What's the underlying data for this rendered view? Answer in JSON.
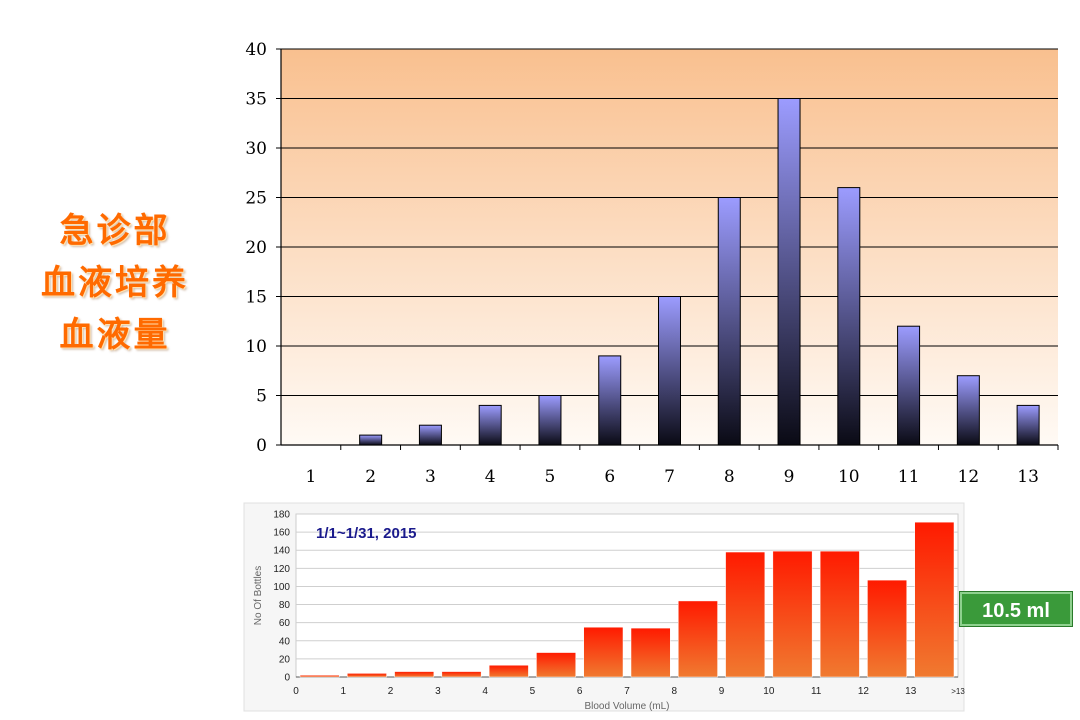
{
  "side_title": [
    "急诊部",
    "血液培养",
    "血液量"
  ],
  "badge": "10.5 ml",
  "colors": {
    "title": "#ff6a00",
    "chart1_bg_top": "#f9c08f",
    "chart1_bg_bottom": "#fffaf5",
    "chart1_bar_top": "#9c9cff",
    "chart1_bar_bottom": "#0a0a14",
    "chart2_bar_top": "#ff1a00",
    "chart2_bar_bottom": "#f07a30",
    "badge_bg": "#3a9a3a",
    "chart2_title": "#1a1a8c"
  },
  "chart_data": [
    {
      "type": "bar",
      "title": "",
      "xlabel": "",
      "ylabel": "",
      "categories": [
        "1",
        "2",
        "3",
        "4",
        "5",
        "6",
        "7",
        "8",
        "9",
        "10",
        "11",
        "12",
        "13"
      ],
      "values": [
        0,
        1,
        2,
        4,
        5,
        9,
        15,
        25,
        35,
        26,
        12,
        7,
        4
      ],
      "ylim": [
        0,
        40
      ],
      "yticks": [
        0,
        5,
        10,
        15,
        20,
        25,
        30,
        35,
        40
      ],
      "grid": true
    },
    {
      "type": "bar",
      "title": "1/1~1/31, 2015",
      "xlabel": "Blood Volume (mL)",
      "ylabel": "No Of Bottles",
      "tick_labels": [
        "0",
        "1",
        "2",
        "3",
        "4",
        "5",
        "6",
        "7",
        "8",
        "9",
        "10",
        "11",
        "12",
        "13",
        ">13"
      ],
      "values": [
        2,
        4,
        6,
        6,
        13,
        27,
        55,
        54,
        84,
        138,
        139,
        139,
        107,
        171
      ],
      "ylim": [
        0,
        180
      ],
      "yticks": [
        0,
        20,
        40,
        60,
        80,
        100,
        120,
        140,
        160,
        180
      ],
      "grid": true
    }
  ]
}
